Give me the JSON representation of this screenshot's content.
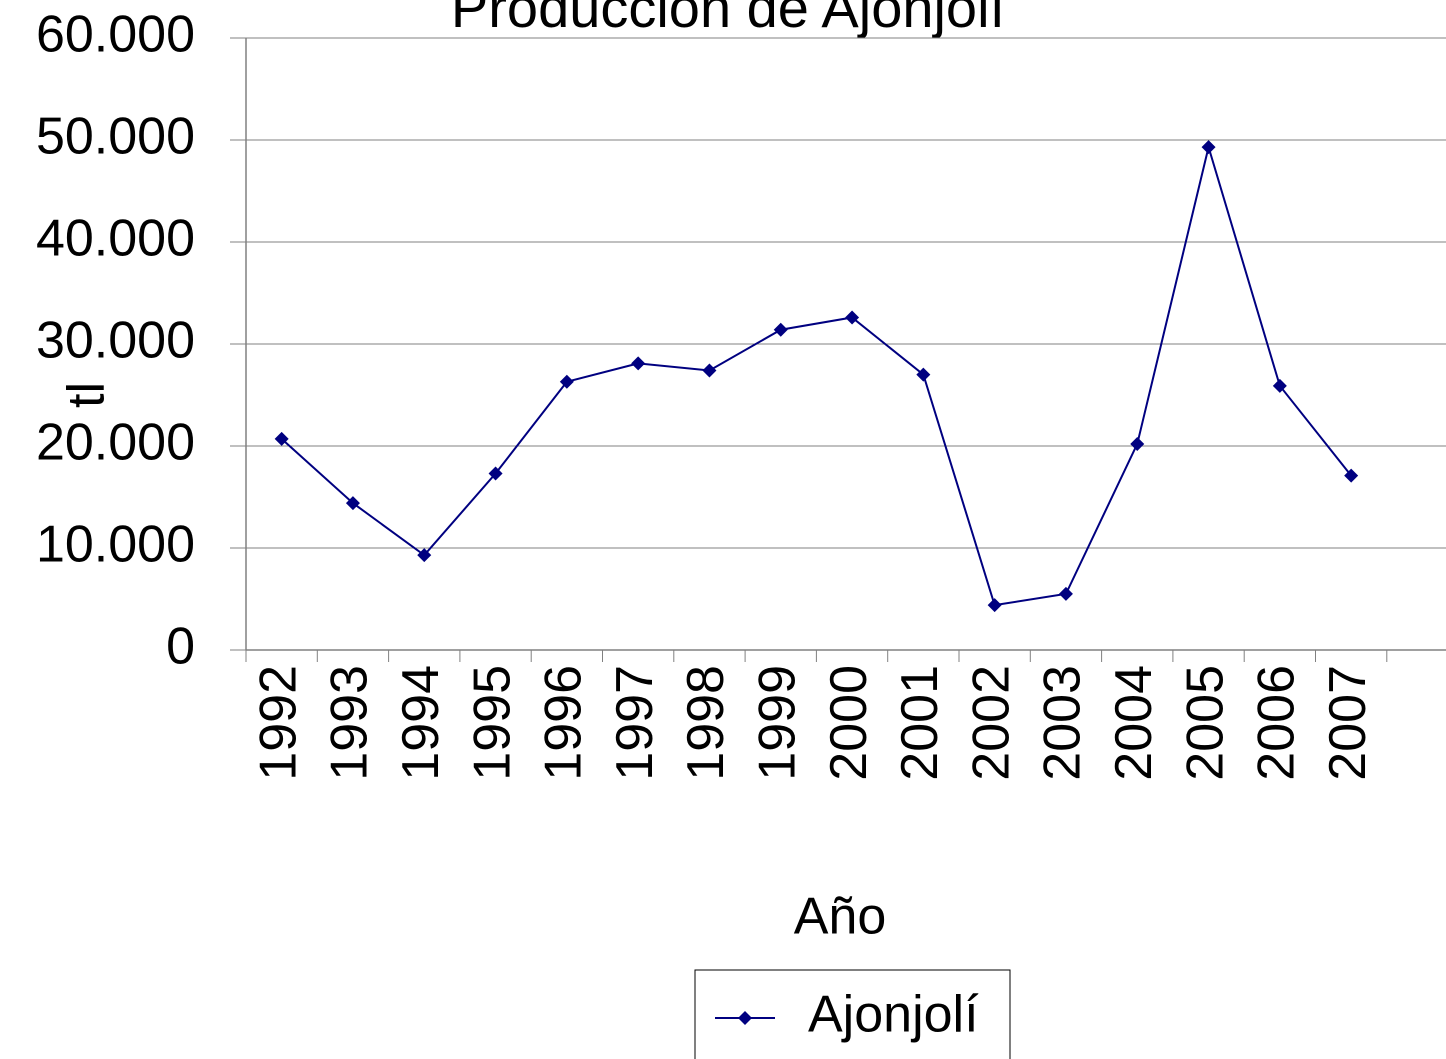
{
  "chart_data": {
    "type": "line",
    "title": "Producción de Ajonjolí",
    "x_label": "Año",
    "y_label": "tl",
    "categories": [
      "1992",
      "1993",
      "1994",
      "1995",
      "1996",
      "1997",
      "1998",
      "1999",
      "2000",
      "2001",
      "2002",
      "2003",
      "2004",
      "2005",
      "2006",
      "2007"
    ],
    "series": [
      {
        "name": "Ajonjolí",
        "color": "#000080",
        "values": [
          20700,
          14400,
          9300,
          17300,
          26300,
          28100,
          27400,
          31400,
          32600,
          27000,
          4400,
          5500,
          20200,
          49300,
          25900,
          17100
        ]
      }
    ],
    "ylim": [
      0,
      60000
    ],
    "yticks": [
      0,
      {
        "value": 10000,
        "label": "10.000"
      },
      {
        "value": 20000,
        "label": "20.000"
      },
      {
        "value": 30000,
        "label": "30.000"
      },
      {
        "value": 40000,
        "label": "40.000"
      },
      {
        "value": 50000,
        "label": "50.000"
      },
      {
        "value": 60000,
        "label": "60.000"
      }
    ],
    "grid": true
  }
}
